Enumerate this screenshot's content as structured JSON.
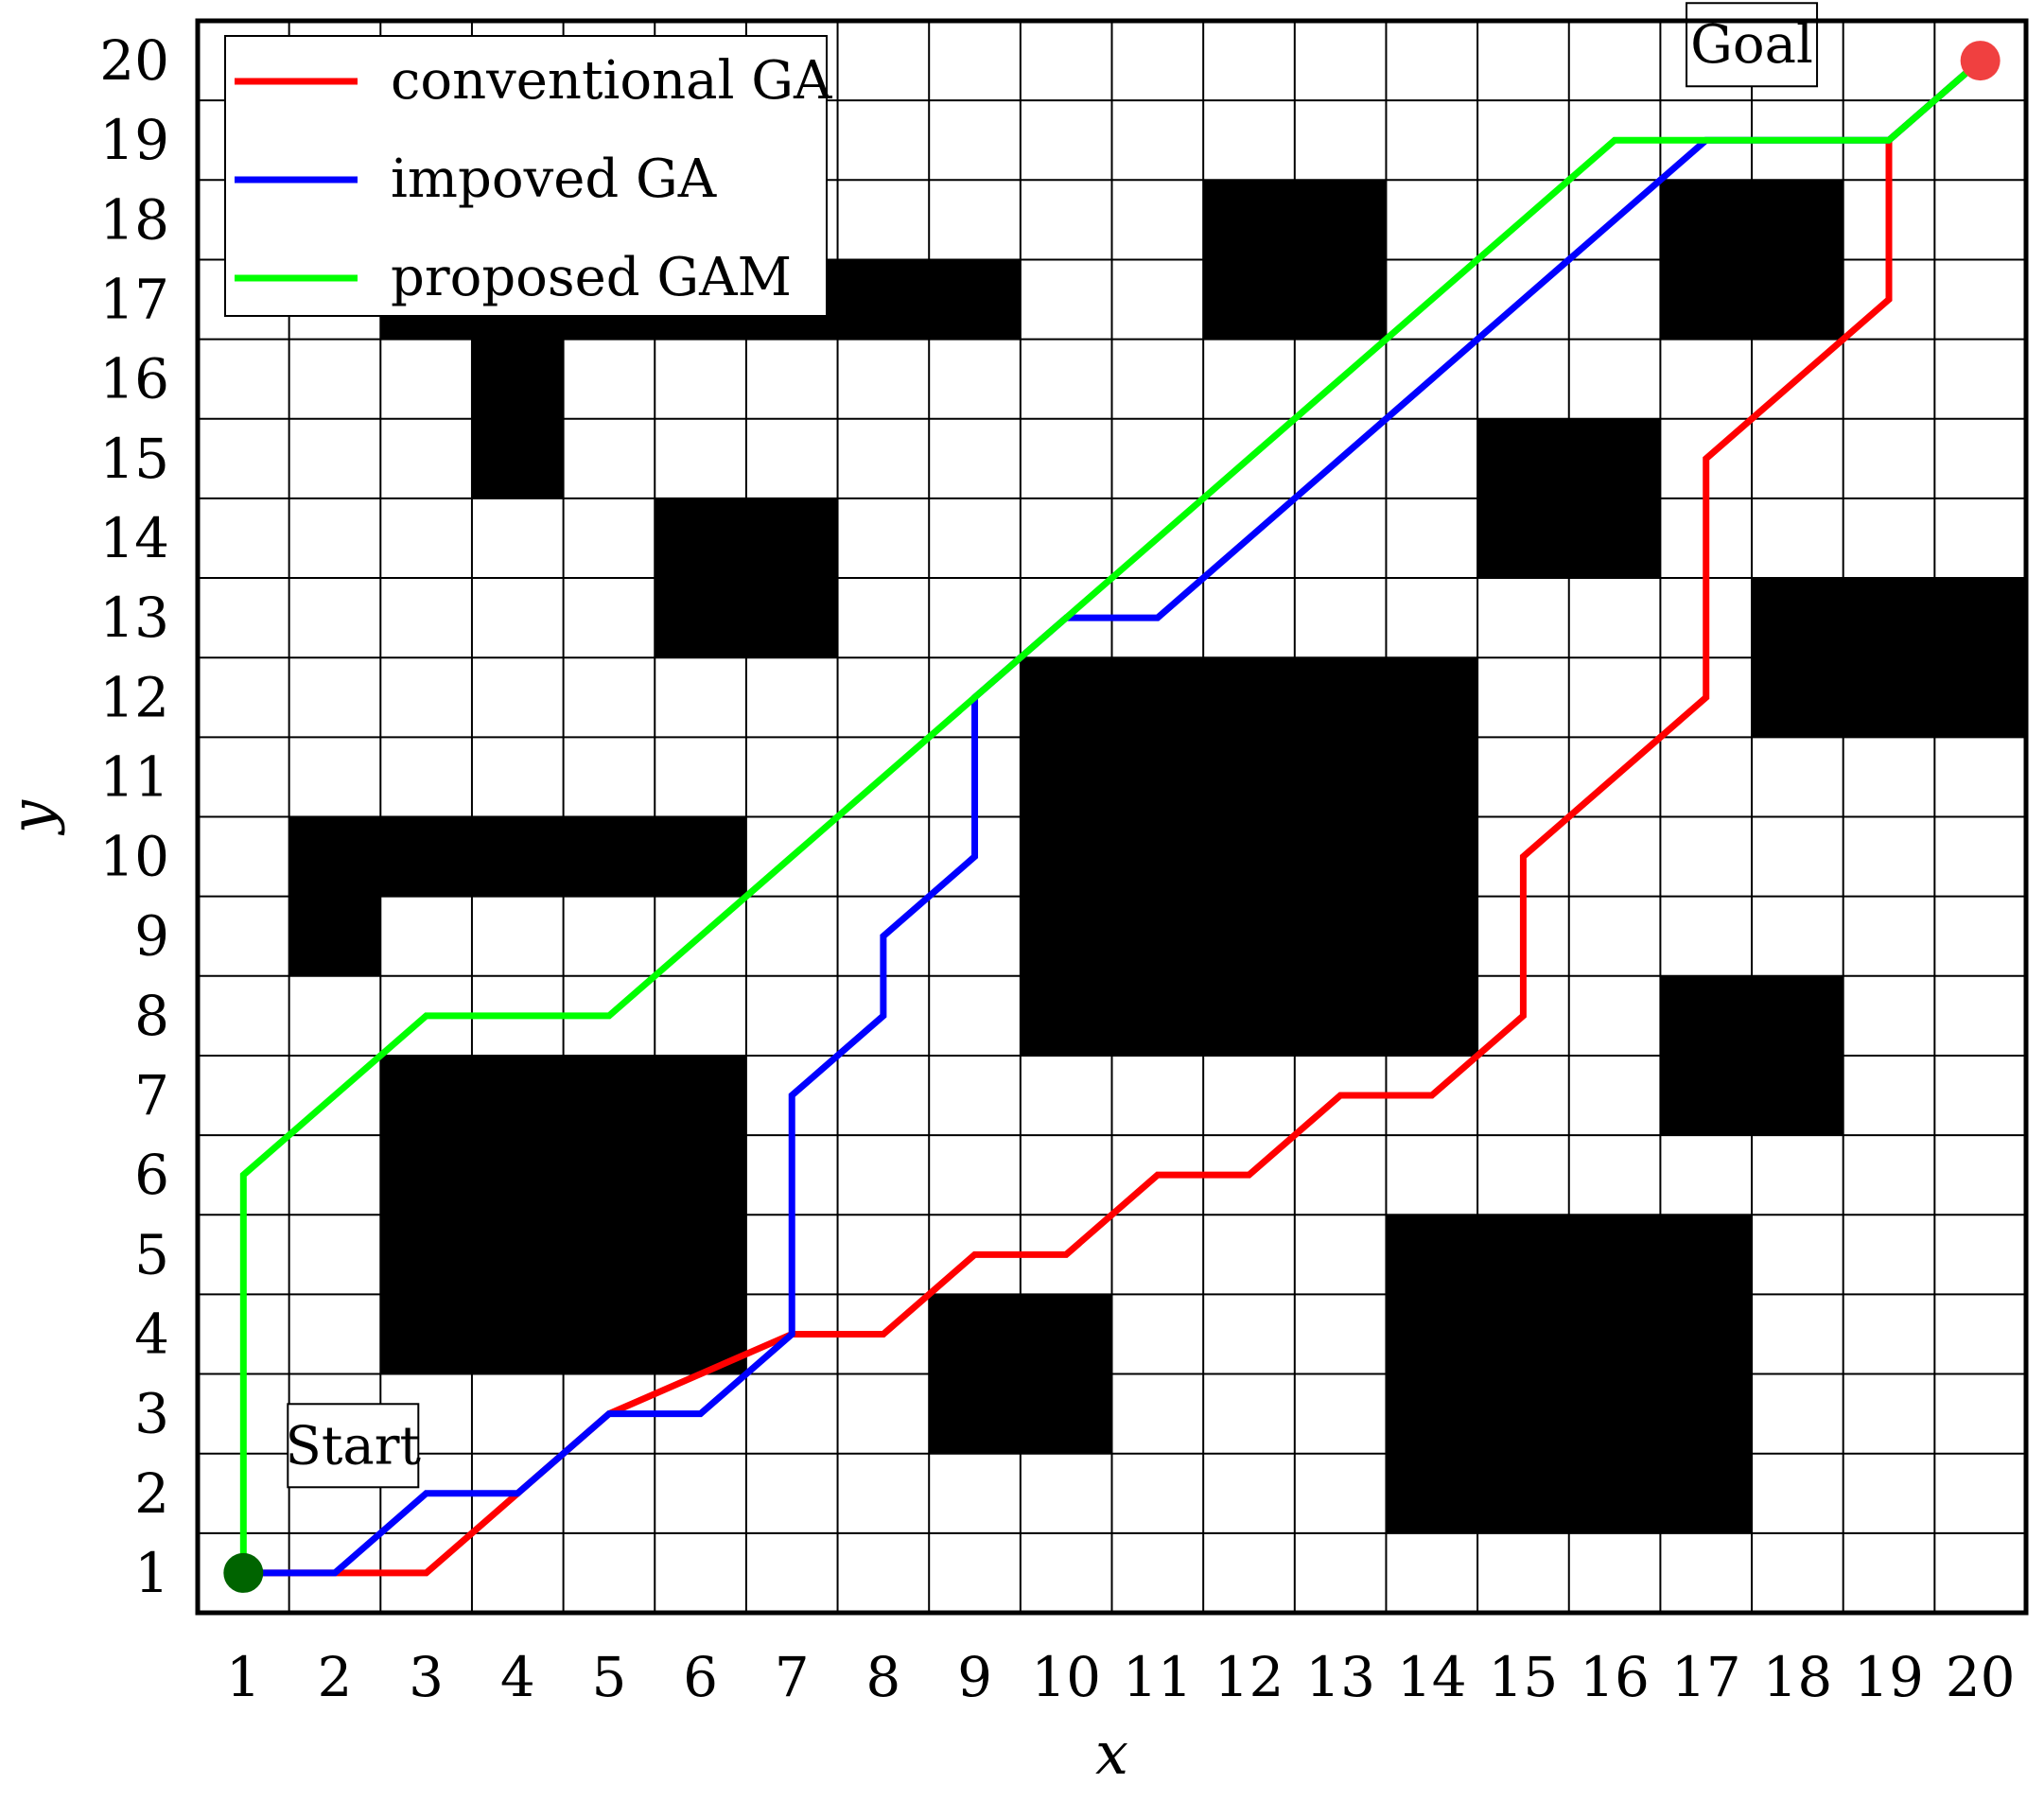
{
  "chart_data": {
    "type": "line",
    "title": "",
    "xlabel": "x",
    "ylabel": "y",
    "xlim": [
      0.5,
      20.5
    ],
    "ylim": [
      0.5,
      20.5
    ],
    "grid": true,
    "legend_position": "top-left",
    "x_ticks": [
      "1",
      "2",
      "3",
      "4",
      "5",
      "6",
      "7",
      "8",
      "9",
      "10",
      "11",
      "12",
      "13",
      "14",
      "15",
      "16",
      "17",
      "18",
      "19",
      "20"
    ],
    "y_ticks": [
      "1",
      "2",
      "3",
      "4",
      "5",
      "6",
      "7",
      "8",
      "9",
      "10",
      "11",
      "12",
      "13",
      "14",
      "15",
      "16",
      "17",
      "18",
      "19",
      "20"
    ],
    "series": [
      {
        "name": "conventional GA",
        "color": "#ff0000",
        "points": [
          [
            1,
            1
          ],
          [
            3,
            1
          ],
          [
            4,
            2
          ],
          [
            5,
            3
          ],
          [
            6,
            3.5
          ],
          [
            7,
            4
          ],
          [
            8,
            4
          ],
          [
            9,
            5
          ],
          [
            10,
            5
          ],
          [
            11,
            6
          ],
          [
            12,
            6
          ],
          [
            13,
            7
          ],
          [
            14,
            7
          ],
          [
            15,
            8
          ],
          [
            15,
            10
          ],
          [
            16,
            11
          ],
          [
            17,
            12
          ],
          [
            17,
            15
          ],
          [
            18,
            16
          ],
          [
            19,
            17
          ],
          [
            19,
            19
          ],
          [
            20,
            20
          ]
        ]
      },
      {
        "name": "impoved GA",
        "color": "#0000ff",
        "points": [
          [
            1,
            1
          ],
          [
            2,
            1
          ],
          [
            3,
            2
          ],
          [
            4,
            2
          ],
          [
            5,
            3
          ],
          [
            6,
            3
          ],
          [
            7,
            4
          ],
          [
            7,
            7
          ],
          [
            8,
            8
          ],
          [
            8,
            9
          ],
          [
            9,
            10
          ],
          [
            9,
            12
          ],
          [
            10,
            13
          ],
          [
            11,
            13
          ],
          [
            12,
            14
          ],
          [
            13,
            15
          ],
          [
            14,
            16
          ],
          [
            15,
            17
          ],
          [
            16,
            18
          ],
          [
            17,
            19
          ],
          [
            19,
            19
          ],
          [
            20,
            20
          ]
        ]
      },
      {
        "name": "proposed GAM",
        "color": "#00ff00",
        "points": [
          [
            1,
            1
          ],
          [
            1,
            6
          ],
          [
            2,
            7
          ],
          [
            3,
            8
          ],
          [
            5,
            8
          ],
          [
            6,
            9
          ],
          [
            7,
            10
          ],
          [
            8,
            11
          ],
          [
            9,
            12
          ],
          [
            10,
            13
          ],
          [
            11,
            14
          ],
          [
            12,
            15
          ],
          [
            13,
            16
          ],
          [
            14,
            17
          ],
          [
            15,
            18
          ],
          [
            16,
            19
          ],
          [
            19,
            19
          ],
          [
            20,
            20
          ]
        ]
      }
    ],
    "obstacles": [
      {
        "x0": 2.5,
        "x1": 6.5,
        "y0": 3.5,
        "y1": 7.5
      },
      {
        "x0": 8.5,
        "x1": 10.5,
        "y0": 2.5,
        "y1": 4.5
      },
      {
        "x0": 13.5,
        "x1": 17.5,
        "y0": 1.5,
        "y1": 5.5
      },
      {
        "x0": 9.5,
        "x1": 14.5,
        "y0": 7.5,
        "y1": 12.5
      },
      {
        "x0": 16.5,
        "x1": 18.5,
        "y0": 6.5,
        "y1": 8.5
      },
      {
        "x0": 17.5,
        "x1": 20.5,
        "y0": 11.5,
        "y1": 13.5
      },
      {
        "x0": 14.5,
        "x1": 16.5,
        "y0": 13.5,
        "y1": 15.5
      },
      {
        "x0": 11.5,
        "x1": 13.5,
        "y0": 16.5,
        "y1": 18.5
      },
      {
        "x0": 16.5,
        "x1": 18.5,
        "y0": 16.5,
        "y1": 18.5
      },
      {
        "x0": 5.5,
        "x1": 7.5,
        "y0": 12.5,
        "y1": 14.5
      },
      {
        "x0": 1.5,
        "x1": 6.5,
        "y0": 9.5,
        "y1": 10.5
      },
      {
        "x0": 1.5,
        "x1": 2.5,
        "y0": 8.5,
        "y1": 9.5
      },
      {
        "x0": 2.5,
        "x1": 9.5,
        "y0": 16.5,
        "y1": 17.5
      },
      {
        "x0": 3.5,
        "x1": 4.5,
        "y0": 14.5,
        "y1": 16.5
      }
    ],
    "start": {
      "label": "Start",
      "x": 1,
      "y": 1,
      "color": "#006400"
    },
    "goal": {
      "label": "Goal",
      "x": 20,
      "y": 20,
      "color": "#f04040"
    }
  }
}
